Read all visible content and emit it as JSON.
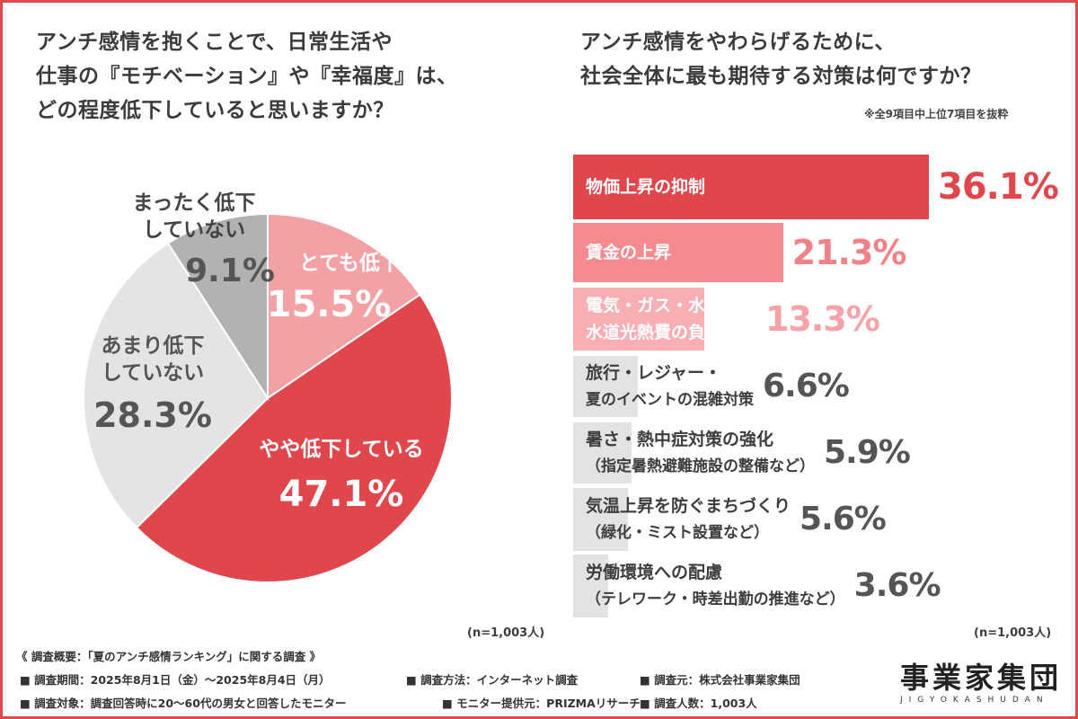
{
  "left_question": {
    "lines": [
      "アンチ感情を抱くことで、日常生活や",
      "仕事の『モチベーション』や『幸福度』は、",
      "どの程度低下していると思いますか？"
    ]
  },
  "right_question": {
    "lines": [
      "アンチ感情をやわらげるために、",
      "社会全体に最も期待する対策は何ですか？"
    ],
    "note": "※全9項目中上位7項目を抜粋"
  },
  "chart_data": [
    {
      "type": "pie",
      "slices": [
        {
          "label": "とても低下している",
          "value": 15.5,
          "display": "15.5%",
          "color": "#f4a1a6"
        },
        {
          "label": "やや低下している",
          "value": 47.1,
          "display": "47.1%",
          "color": "#e0474d"
        },
        {
          "label": "あまり低下していない",
          "label_lines": [
            "あまり低下",
            "していない"
          ],
          "value": 28.3,
          "display": "28.3%",
          "color": "#e4e4e6"
        },
        {
          "label": "まったく低下していない",
          "label_lines": [
            "まったく低下",
            "していない"
          ],
          "value": 9.1,
          "display": "9.1%",
          "color": "#b2b2b4"
        }
      ],
      "note": "(n=1,003人)"
    },
    {
      "type": "bar",
      "orientation": "horizontal",
      "categories": [
        [
          "物価上昇の抑制"
        ],
        [
          "賃金の上昇"
        ],
        [
          "電気・ガス・水道など",
          "水道光熱費の負担軽減"
        ],
        [
          "旅行・レジャー・",
          "夏のイベントの混雑対策"
        ],
        [
          "暑さ・熱中症対策の強化",
          "（指定暑熱避難施設の整備など）"
        ],
        [
          "気温上昇を防ぐまちづくり",
          "（緑化・ミスト設置など）"
        ],
        [
          "労働環境への配慮",
          "（テレワーク・時差出勤の推進など）"
        ]
      ],
      "values": [
        36.1,
        21.3,
        13.3,
        6.6,
        5.9,
        5.6,
        3.6
      ],
      "display": [
        "36.1%",
        "21.3%",
        "13.3%",
        "6.6%",
        "5.9%",
        "5.6%",
        "3.6%"
      ],
      "colors": {
        "top1": "#e0474d",
        "top2": "#f58a90",
        "top3": "#f8aeb2",
        "other": "#e3e3e5",
        "value_top1": "#e0474d",
        "value_top2": "#f08288",
        "value_top3": "#f5a3a8",
        "value_other": "#555555"
      },
      "note": "(n=1,003人)"
    }
  ],
  "footer": {
    "title": "《 調査概要：「夏のアンチ感情ランキング」に関する調査 》",
    "period": "■ 調査期間：2025年8月1日（金）〜2025年8月4日（月）",
    "method": "■ 調査方法：インターネット調査",
    "source": "■ 調査元：株式会社事業家集団",
    "target": "■ 調査対象：調査回答時に20〜60代の男女と回答したモニター",
    "provider": "■ モニター提供元：PRIZMAリサーチ",
    "count": "■ 調査人数：1,003人"
  },
  "logo": {
    "main": "事業家集団",
    "sub": "JIGYOKASHUDAN"
  }
}
